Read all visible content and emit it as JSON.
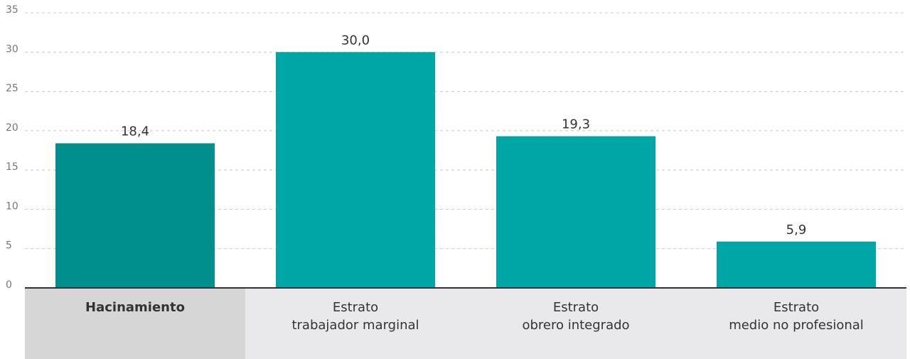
{
  "chart_data": {
    "type": "bar",
    "categories": [
      [
        "Hacinamiento"
      ],
      [
        "Estrato",
        "trabajador marginal"
      ],
      [
        "Estrato",
        "obrero integrado"
      ],
      [
        "Estrato",
        "medio no profesional"
      ]
    ],
    "values": [
      18.4,
      30.0,
      19.3,
      5.9
    ],
    "value_labels": [
      "18,4",
      "30,0",
      "19,3",
      "5,9"
    ],
    "colors": [
      "#008f8c",
      "#00a5a5",
      "#00a5a5",
      "#00a5a5"
    ],
    "highlight": 0,
    "ylim": [
      0,
      35
    ],
    "yticks": [
      0,
      5,
      10,
      15,
      20,
      25,
      30,
      35
    ],
    "grid": true
  }
}
